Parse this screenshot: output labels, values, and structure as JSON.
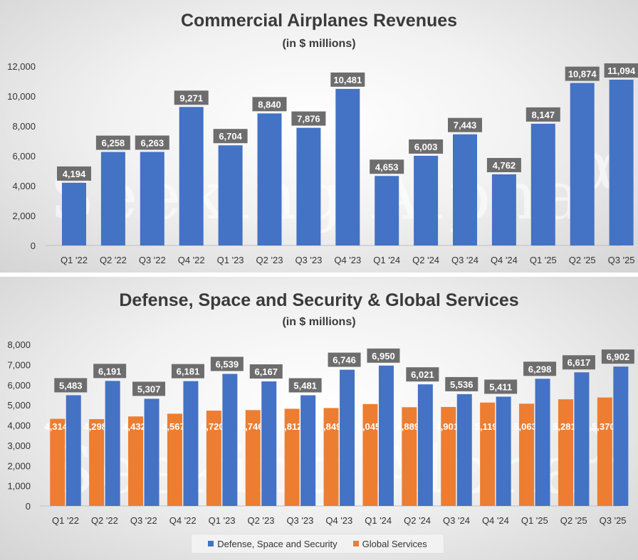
{
  "chart_data": [
    {
      "type": "bar",
      "title": "Commercial Airplanes Revenues",
      "subtitle": "(in $ millions)",
      "categories": [
        "Q1 '22",
        "Q2 '22",
        "Q3 '22",
        "Q4 '22",
        "Q1 '23",
        "Q2 '23",
        "Q3 '23",
        "Q4 '23",
        "Q1 '24",
        "Q2 '24",
        "Q3 '24",
        "Q4 '24",
        "Q1 '25",
        "Q2 '25",
        "Q3 '25"
      ],
      "values": [
        4194,
        6258,
        6263,
        9271,
        6704,
        8840,
        7876,
        10481,
        4653,
        6003,
        7443,
        4762,
        8147,
        10874,
        11094
      ],
      "data_labels": [
        "4,194",
        "6,258",
        "6,263",
        "9,271",
        "6,704",
        "8,840",
        "7,876",
        "10,481",
        "4,653",
        "6,003",
        "7,443",
        "4,762",
        "8,147",
        "10,874",
        "11,094"
      ],
      "ylim": [
        0,
        12000
      ],
      "yticks": [
        0,
        2000,
        4000,
        6000,
        8000,
        10000,
        12000
      ],
      "ytick_labels": [
        "0",
        "2,000",
        "4,000",
        "6,000",
        "8,000",
        "10,000",
        "12,000"
      ],
      "color": "#4472c4",
      "grid": false
    },
    {
      "type": "bar",
      "title": "Defense, Space and Security & Global Services",
      "subtitle": "(in $ millions)",
      "categories": [
        "Q1 '22",
        "Q2 '22",
        "Q3 '22",
        "Q4 '22",
        "Q1 '23",
        "Q2 '23",
        "Q3 '23",
        "Q4 '23",
        "Q1 '24",
        "Q2 '24",
        "Q3 '24",
        "Q4 '24",
        "Q1 '25",
        "Q2 '25",
        "Q3 '25"
      ],
      "series": [
        {
          "name": "Defense, Space and Security",
          "color": "#4472c4",
          "values": [
            5483,
            6191,
            5307,
            6181,
            6539,
            6167,
            5481,
            6746,
            6950,
            6021,
            5536,
            5411,
            6298,
            6617,
            6902
          ],
          "data_labels": [
            "5,483",
            "6,191",
            "5,307",
            "6,181",
            "6,539",
            "6,167",
            "5,481",
            "6,746",
            "6,950",
            "6,021",
            "5,536",
            "5,411",
            "6,298",
            "6,617",
            "6,902"
          ]
        },
        {
          "name": "Global Services",
          "color": "#ed7d31",
          "values": [
            4314,
            4298,
            4432,
            4567,
            4720,
            4746,
            4812,
            4849,
            5045,
            4889,
            4901,
            5119,
            5063,
            5281,
            5370
          ],
          "data_labels": [
            "4,314",
            "4,298",
            "4,432",
            "4,567",
            "4,720",
            "4,746",
            "4,812",
            "4,849",
            "5,045",
            "4,889",
            "4,901",
            "5,119",
            "5,063",
            "5,281",
            "5,370"
          ]
        }
      ],
      "ylim": [
        0,
        8000
      ],
      "yticks": [
        0,
        1000,
        2000,
        3000,
        4000,
        5000,
        6000,
        7000,
        8000
      ],
      "ytick_labels": [
        "0",
        "1,000",
        "2,000",
        "3,000",
        "4,000",
        "5,000",
        "6,000",
        "7,000",
        "8,000"
      ],
      "legend": "bottom",
      "grid": false
    }
  ],
  "watermark": {
    "text": "Seeking Alpha",
    "glyph": "α"
  }
}
